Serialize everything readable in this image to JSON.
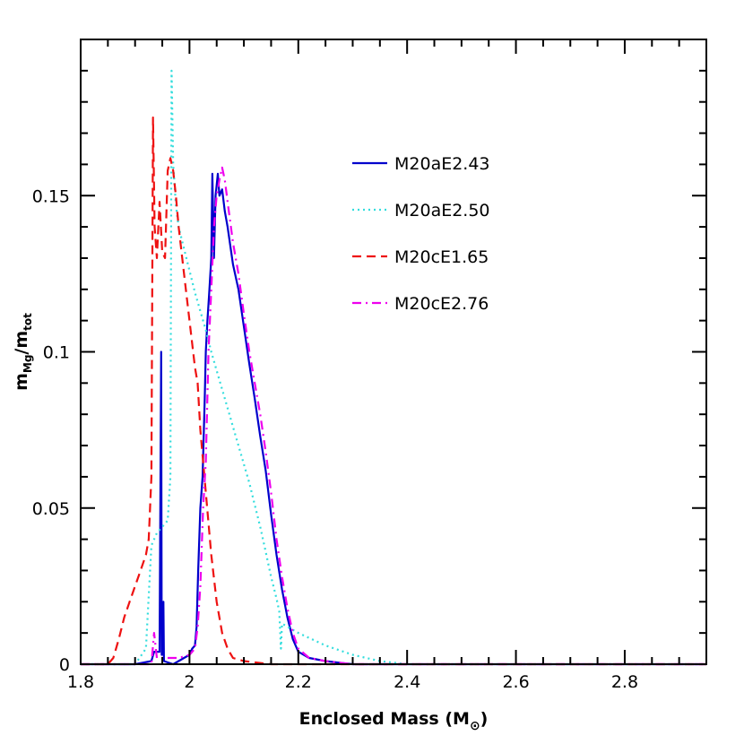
{
  "chart_data": {
    "type": "line",
    "xlabel": "Enclosed Mass (M",
    "xlabel_sub": "⊙",
    "xlabel_close": ")",
    "ylabel_main": "m",
    "ylabel_sub1": "Mg",
    "ylabel_slash": "/m",
    "ylabel_sub2": "tot",
    "xlim": [
      1.8,
      2.95
    ],
    "ylim": [
      0,
      0.2
    ],
    "x_ticks": [
      1.8,
      2.0,
      2.2,
      2.4,
      2.6,
      2.8
    ],
    "x_tick_labels": [
      "1.8",
      "2",
      "2.2",
      "2.4",
      "2.6",
      "2.8"
    ],
    "y_ticks": [
      0,
      0.05,
      0.1,
      0.15
    ],
    "y_tick_labels": [
      "0",
      "0.05",
      "0.1",
      "0.15"
    ],
    "legend_position": "top-right",
    "grid": false,
    "series": [
      {
        "name": "M20aE2.43",
        "color": "#0000cc",
        "style": "solid",
        "points": [
          [
            1.8,
            0
          ],
          [
            1.9,
            0
          ],
          [
            1.93,
            0.001
          ],
          [
            1.935,
            0.004
          ],
          [
            1.945,
            0.004
          ],
          [
            1.948,
            0.1
          ],
          [
            1.949,
            0.003
          ],
          [
            1.95,
            0.003
          ],
          [
            1.952,
            0.02
          ],
          [
            1.953,
            0.001
          ],
          [
            1.97,
            0
          ],
          [
            1.99,
            0.002
          ],
          [
            2.0,
            0.003
          ],
          [
            2.005,
            0.005
          ],
          [
            2.01,
            0.006
          ],
          [
            2.013,
            0.012
          ],
          [
            2.016,
            0.03
          ],
          [
            2.02,
            0.05
          ],
          [
            2.024,
            0.06
          ],
          [
            2.028,
            0.085
          ],
          [
            2.03,
            0.1
          ],
          [
            2.033,
            0.11
          ],
          [
            2.036,
            0.118
          ],
          [
            2.04,
            0.13
          ],
          [
            2.042,
            0.157
          ],
          [
            2.045,
            0.13
          ],
          [
            2.048,
            0.15
          ],
          [
            2.052,
            0.157
          ],
          [
            2.055,
            0.15
          ],
          [
            2.06,
            0.152
          ],
          [
            2.065,
            0.145
          ],
          [
            2.07,
            0.14
          ],
          [
            2.08,
            0.128
          ],
          [
            2.09,
            0.12
          ],
          [
            2.1,
            0.108
          ],
          [
            2.11,
            0.096
          ],
          [
            2.12,
            0.085
          ],
          [
            2.13,
            0.073
          ],
          [
            2.14,
            0.062
          ],
          [
            2.15,
            0.048
          ],
          [
            2.16,
            0.035
          ],
          [
            2.17,
            0.024
          ],
          [
            2.18,
            0.015
          ],
          [
            2.19,
            0.008
          ],
          [
            2.2,
            0.004
          ],
          [
            2.22,
            0.002
          ],
          [
            2.25,
            0.001
          ],
          [
            2.3,
            0
          ],
          [
            2.95,
            0
          ]
        ]
      },
      {
        "name": "M20aE2.50",
        "color": "#33dddd",
        "style": "dotted",
        "points": [
          [
            1.8,
            0
          ],
          [
            1.9,
            0
          ],
          [
            1.92,
            0.005
          ],
          [
            1.93,
            0.038
          ],
          [
            1.94,
            0.042
          ],
          [
            1.95,
            0.044
          ],
          [
            1.96,
            0.046
          ],
          [
            1.965,
            0.06
          ],
          [
            1.967,
            0.19
          ],
          [
            1.97,
            0.16
          ],
          [
            1.975,
            0.147
          ],
          [
            1.98,
            0.14
          ],
          [
            1.99,
            0.133
          ],
          [
            2.0,
            0.126
          ],
          [
            2.01,
            0.119
          ],
          [
            2.02,
            0.113
          ],
          [
            2.03,
            0.107
          ],
          [
            2.04,
            0.1
          ],
          [
            2.05,
            0.094
          ],
          [
            2.06,
            0.088
          ],
          [
            2.07,
            0.082
          ],
          [
            2.08,
            0.076
          ],
          [
            2.09,
            0.07
          ],
          [
            2.1,
            0.064
          ],
          [
            2.11,
            0.058
          ],
          [
            2.12,
            0.051
          ],
          [
            2.13,
            0.044
          ],
          [
            2.14,
            0.036
          ],
          [
            2.15,
            0.028
          ],
          [
            2.16,
            0.021
          ],
          [
            2.165,
            0.017
          ],
          [
            2.168,
            0.005
          ],
          [
            2.17,
            0.013
          ],
          [
            2.2,
            0.01
          ],
          [
            2.25,
            0.006
          ],
          [
            2.3,
            0.003
          ],
          [
            2.35,
            0.001
          ],
          [
            2.4,
            0
          ],
          [
            2.95,
            0
          ]
        ]
      },
      {
        "name": "M20cE1.65",
        "color": "#ee1111",
        "style": "dashed",
        "points": [
          [
            1.8,
            0
          ],
          [
            1.85,
            0
          ],
          [
            1.86,
            0.002
          ],
          [
            1.87,
            0.008
          ],
          [
            1.88,
            0.015
          ],
          [
            1.89,
            0.02
          ],
          [
            1.9,
            0.025
          ],
          [
            1.91,
            0.03
          ],
          [
            1.92,
            0.035
          ],
          [
            1.925,
            0.04
          ],
          [
            1.93,
            0.06
          ],
          [
            1.933,
            0.175
          ],
          [
            1.936,
            0.14
          ],
          [
            1.94,
            0.13
          ],
          [
            1.945,
            0.148
          ],
          [
            1.95,
            0.132
          ],
          [
            1.955,
            0.13
          ],
          [
            1.96,
            0.158
          ],
          [
            1.965,
            0.162
          ],
          [
            1.97,
            0.158
          ],
          [
            1.975,
            0.15
          ],
          [
            1.98,
            0.14
          ],
          [
            1.99,
            0.125
          ],
          [
            2.0,
            0.11
          ],
          [
            2.01,
            0.095
          ],
          [
            2.015,
            0.09
          ],
          [
            2.02,
            0.075
          ],
          [
            2.03,
            0.055
          ],
          [
            2.04,
            0.035
          ],
          [
            2.05,
            0.02
          ],
          [
            2.06,
            0.01
          ],
          [
            2.07,
            0.005
          ],
          [
            2.08,
            0.002
          ],
          [
            2.1,
            0.001
          ],
          [
            2.15,
            0
          ],
          [
            2.95,
            0
          ]
        ]
      },
      {
        "name": "M20cE2.76",
        "color": "#ee00ee",
        "style": "dashdot",
        "points": [
          [
            1.8,
            0
          ],
          [
            1.93,
            0
          ],
          [
            1.935,
            0.01
          ],
          [
            1.94,
            0.002
          ],
          [
            1.96,
            0.002
          ],
          [
            1.98,
            0.002
          ],
          [
            2.0,
            0.003
          ],
          [
            2.01,
            0.005
          ],
          [
            2.015,
            0.012
          ],
          [
            2.02,
            0.025
          ],
          [
            2.025,
            0.05
          ],
          [
            2.03,
            0.065
          ],
          [
            2.035,
            0.1
          ],
          [
            2.04,
            0.12
          ],
          [
            2.045,
            0.14
          ],
          [
            2.05,
            0.15
          ],
          [
            2.055,
            0.155
          ],
          [
            2.06,
            0.159
          ],
          [
            2.065,
            0.155
          ],
          [
            2.07,
            0.148
          ],
          [
            2.08,
            0.135
          ],
          [
            2.09,
            0.125
          ],
          [
            2.1,
            0.112
          ],
          [
            2.11,
            0.1
          ],
          [
            2.12,
            0.09
          ],
          [
            2.13,
            0.08
          ],
          [
            2.14,
            0.068
          ],
          [
            2.15,
            0.055
          ],
          [
            2.16,
            0.04
          ],
          [
            2.17,
            0.028
          ],
          [
            2.18,
            0.018
          ],
          [
            2.19,
            0.01
          ],
          [
            2.2,
            0.005
          ],
          [
            2.22,
            0.002
          ],
          [
            2.25,
            0.001
          ],
          [
            2.3,
            0
          ],
          [
            2.95,
            0
          ]
        ]
      }
    ]
  }
}
